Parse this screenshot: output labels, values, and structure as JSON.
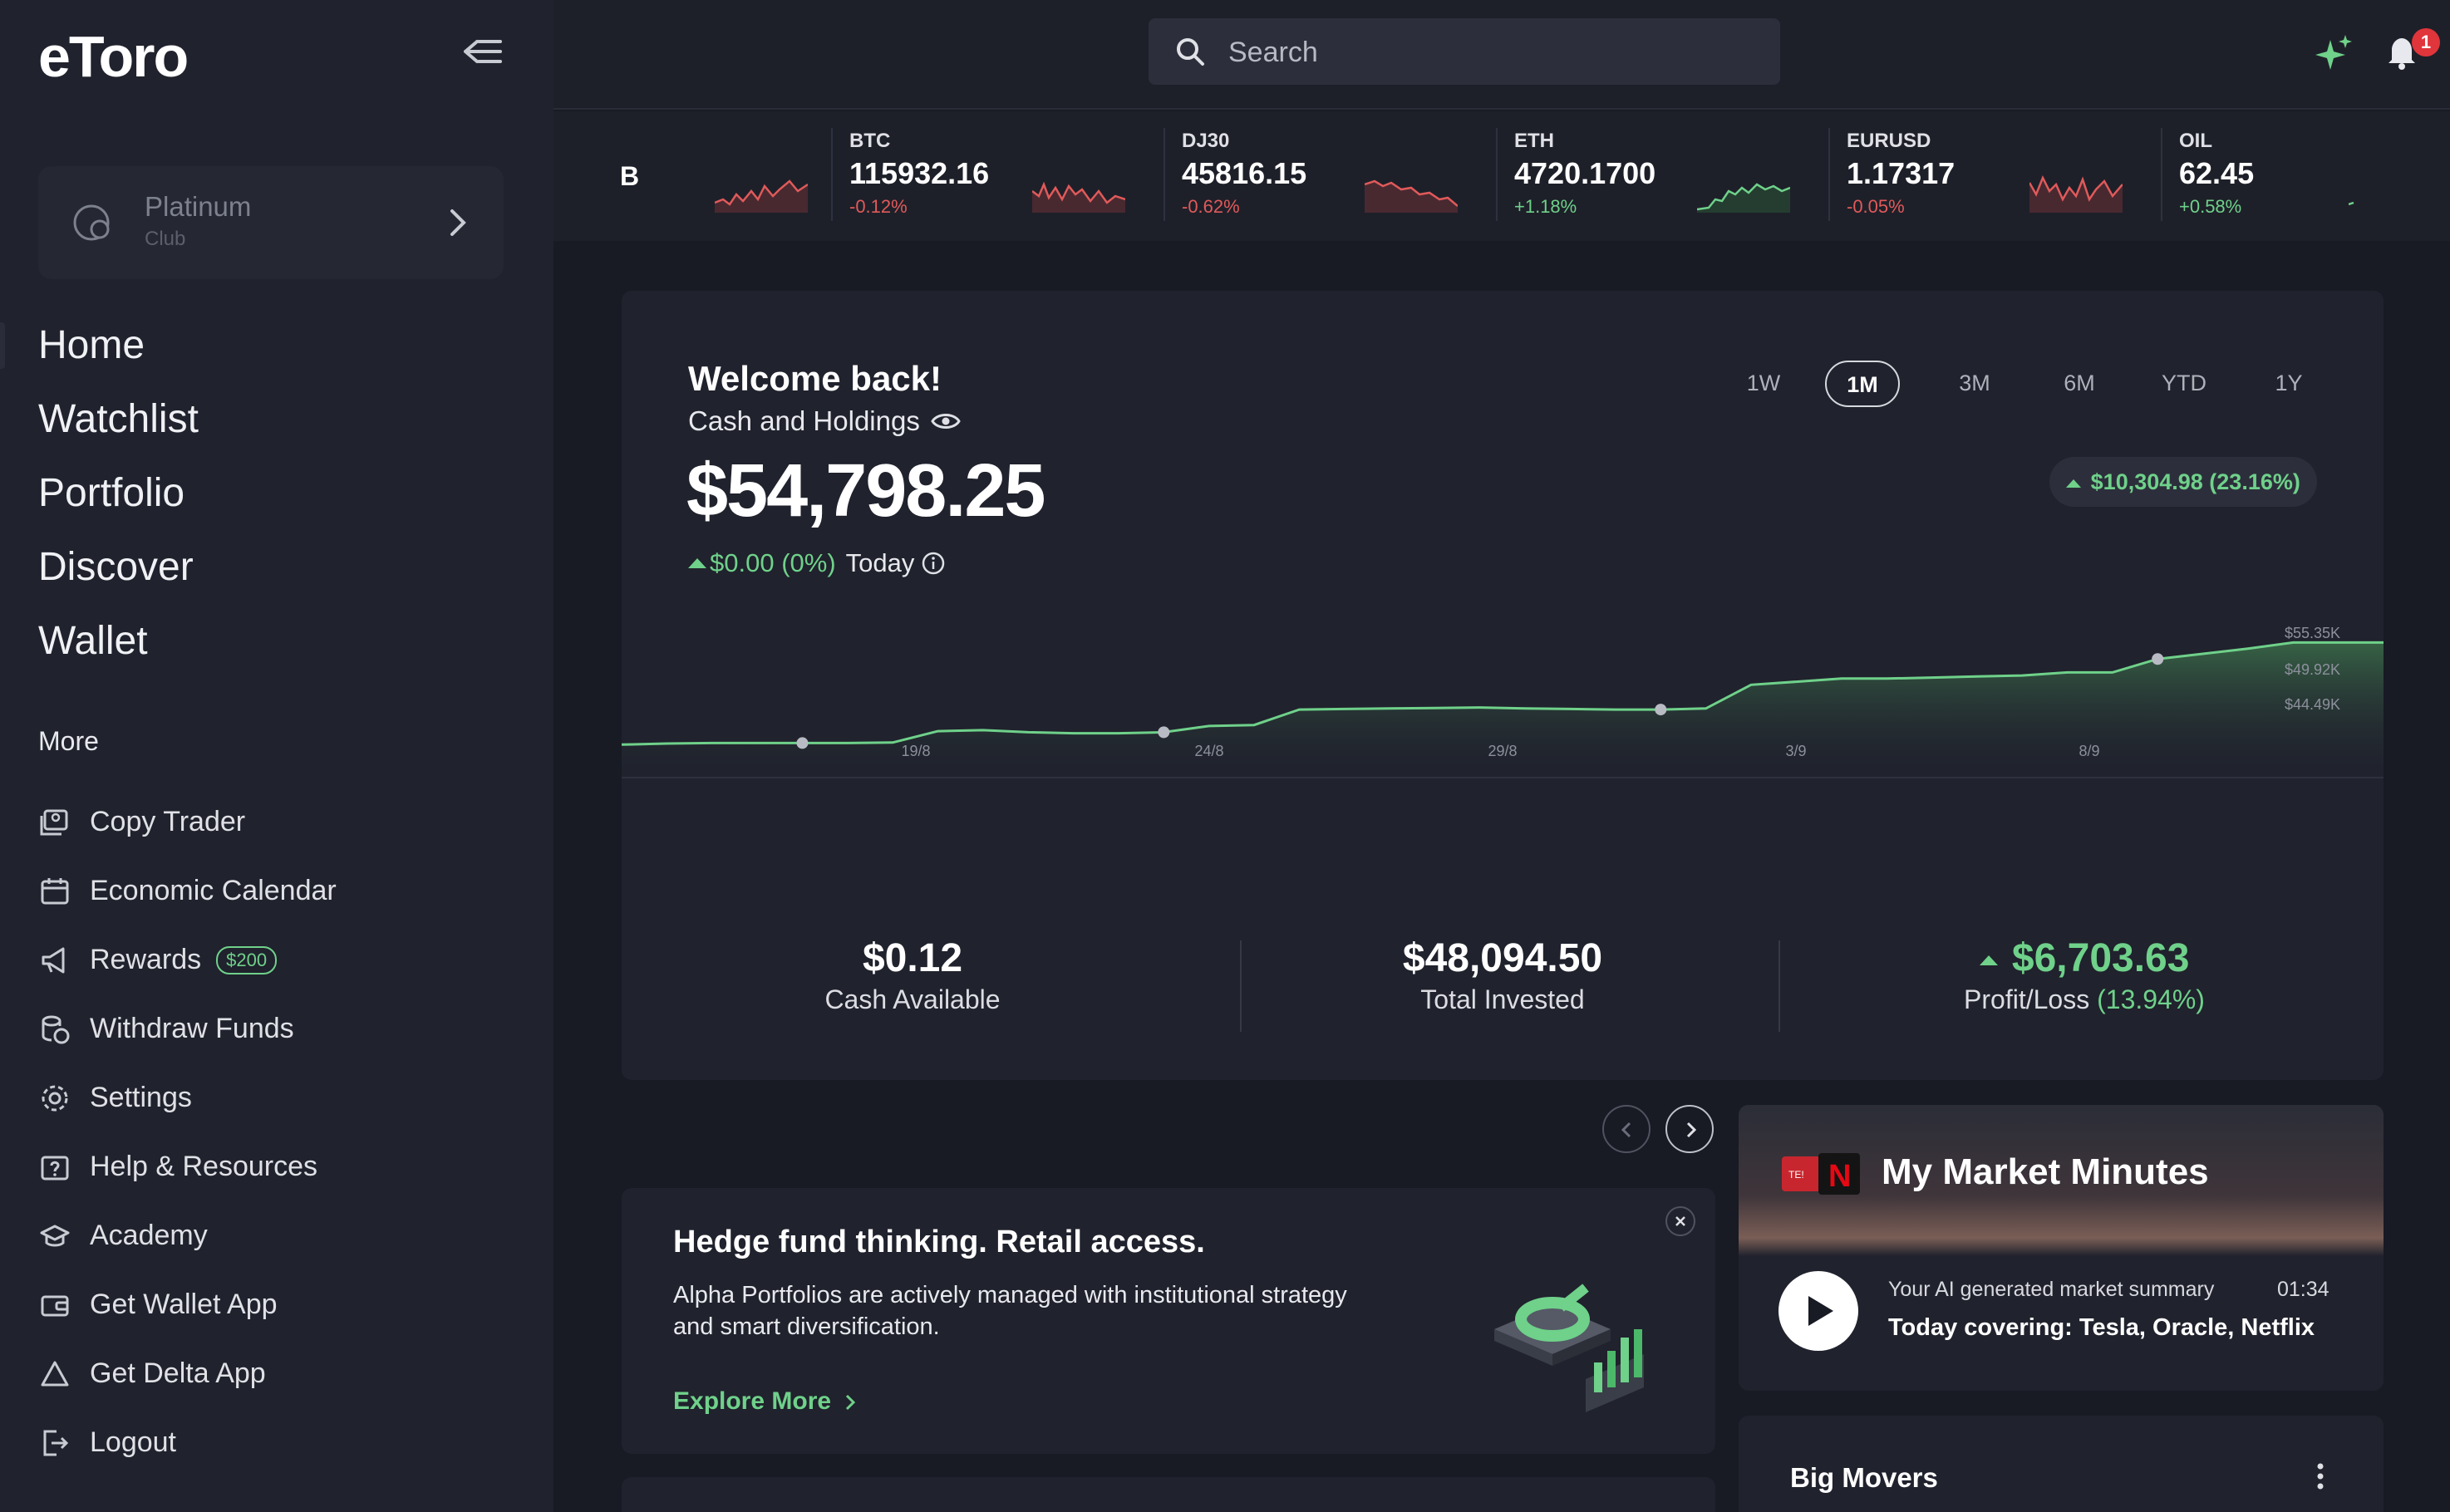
{
  "app": {
    "logo": "eToro"
  },
  "sidebar": {
    "club": {
      "name": "Platinum",
      "sub": "Club"
    },
    "main_nav": [
      {
        "label": "Home"
      },
      {
        "label": "Watchlist"
      },
      {
        "label": "Portfolio"
      },
      {
        "label": "Discover"
      },
      {
        "label": "Wallet"
      }
    ],
    "more_label": "More",
    "sub_nav": [
      {
        "label": "Copy Trader",
        "icon": "copy-trader-icon"
      },
      {
        "label": "Economic Calendar",
        "icon": "calendar-icon"
      },
      {
        "label": "Rewards",
        "icon": "megaphone-icon",
        "badge": "$200"
      },
      {
        "label": "Withdraw Funds",
        "icon": "coins-icon"
      },
      {
        "label": "Settings",
        "icon": "gear-icon"
      },
      {
        "label": "Help & Resources",
        "icon": "help-icon"
      },
      {
        "label": "Academy",
        "icon": "graduation-cap-icon"
      },
      {
        "label": "Get Wallet App",
        "icon": "wallet-icon"
      },
      {
        "label": "Get Delta App",
        "icon": "delta-icon"
      },
      {
        "label": "Logout",
        "icon": "logout-icon"
      }
    ]
  },
  "topbar": {
    "search_placeholder": "Search",
    "notification_count": "1"
  },
  "ticker": {
    "fragment": "B",
    "items": [
      {
        "symbol": "BTC",
        "price": "115932.16",
        "change": "-0.12%",
        "direction": "down"
      },
      {
        "symbol": "DJ30",
        "price": "45816.15",
        "change": "-0.62%",
        "direction": "down"
      },
      {
        "symbol": "ETH",
        "price": "4720.1700",
        "change": "+1.18%",
        "direction": "up"
      },
      {
        "symbol": "EURUSD",
        "price": "1.17317",
        "change": "-0.05%",
        "direction": "down"
      },
      {
        "symbol": "OIL",
        "price": "62.45",
        "change": "+0.58%",
        "direction": "up"
      }
    ]
  },
  "portfolio": {
    "welcome": "Welcome back!",
    "subtitle": "Cash and Holdings",
    "balance": "$54,798.25",
    "today_change": "$0.00 (0%)",
    "today_label": "Today",
    "ranges": [
      "1W",
      "1M",
      "3M",
      "6M",
      "YTD",
      "1Y"
    ],
    "active_range": "1M",
    "period_gain": "$10,304.98 (23.16%)",
    "stats": [
      {
        "value": "$0.12",
        "label": "Cash Available"
      },
      {
        "value": "$48,094.50",
        "label": "Total Invested"
      },
      {
        "value": "$6,703.63",
        "label": "Profit/Loss",
        "pct": "(13.94%)"
      }
    ]
  },
  "chart_data": {
    "type": "area",
    "x_ticks": [
      "19/8",
      "24/8",
      "29/8",
      "3/9",
      "8/9"
    ],
    "y_ticks": [
      "$55.35K",
      "$49.92K",
      "$44.49K"
    ],
    "ylim": [
      42000,
      56500
    ],
    "series": [
      {
        "values": [
          45200,
          45300,
          45350,
          45350,
          45350,
          45350,
          45400,
          46500,
          46600,
          46400,
          46300,
          46300,
          46400,
          47000,
          47100,
          48600,
          48650,
          48700,
          48750,
          48800,
          48700,
          48650,
          48600,
          48600,
          48700,
          51000,
          51300,
          51600,
          51600,
          51700,
          51800,
          51900,
          52200,
          52200,
          53500,
          54000,
          54500,
          55100,
          55100,
          55100
        ],
        "color": "#6fd18a"
      }
    ],
    "markers": [
      4,
      12,
      23,
      34
    ]
  },
  "promo": {
    "title": "Hedge fund thinking. Retail access.",
    "body": "Alpha Portfolios are actively managed with institutional strategy and smart diversification.",
    "link": "Explore More"
  },
  "market_minutes": {
    "title": "My Market Minutes",
    "subtitle": "Your AI generated market summary",
    "duration": "01:34",
    "headline": "Today covering: Tesla, Oracle, Netflix"
  },
  "big_movers": {
    "title": "Big Movers"
  },
  "colors": {
    "accent_green": "#6fd18a",
    "negative_red": "#e05a5a",
    "background": "#181a24",
    "card": "#20222d"
  }
}
